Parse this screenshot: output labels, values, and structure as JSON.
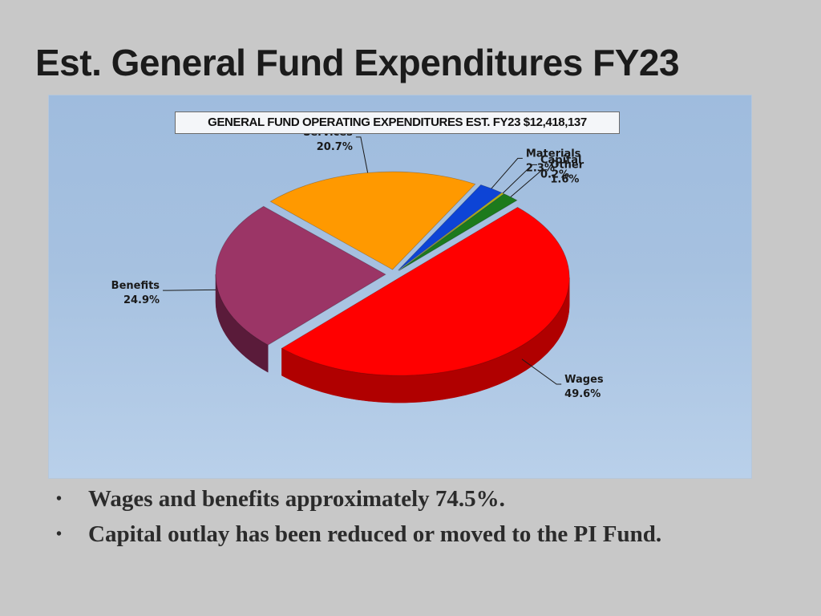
{
  "slide": {
    "title": "Est. General Fund Expenditures FY23",
    "bullets": [
      "Wages and benefits approximately 74.5%.",
      "Capital outlay has been reduced or moved to the PI Fund."
    ]
  },
  "chart_data": {
    "type": "pie",
    "title": "GENERAL FUND OPERATING EXPENDITURES EST. FY23 $12,418,137",
    "slices": [
      {
        "label": "Wages",
        "value": 49.6,
        "display": "49.6%",
        "color": "#ff0000",
        "side": "#b00000"
      },
      {
        "label": "Benefits",
        "value": 24.9,
        "display": "24.9%",
        "color": "#9b3566",
        "side": "#5a1b3a"
      },
      {
        "label": "Services",
        "value": 20.7,
        "display": "20.7%",
        "color": "#ff9900",
        "side": "#c06a00"
      },
      {
        "label": "Materials",
        "value": 2.3,
        "display": "2.3%",
        "color": "#0d44d6",
        "side": "#06268a"
      },
      {
        "label": "Capital",
        "value": 0.2,
        "display": "0.2%",
        "color": "#c8c100",
        "side": "#807a00"
      },
      {
        "label": "Other",
        "value": 1.6,
        "display": "1.6%",
        "color": "#1c7a1c",
        "side": "#0d4a0d"
      }
    ],
    "legend": "none",
    "data_labels": "outside with leader lines"
  }
}
